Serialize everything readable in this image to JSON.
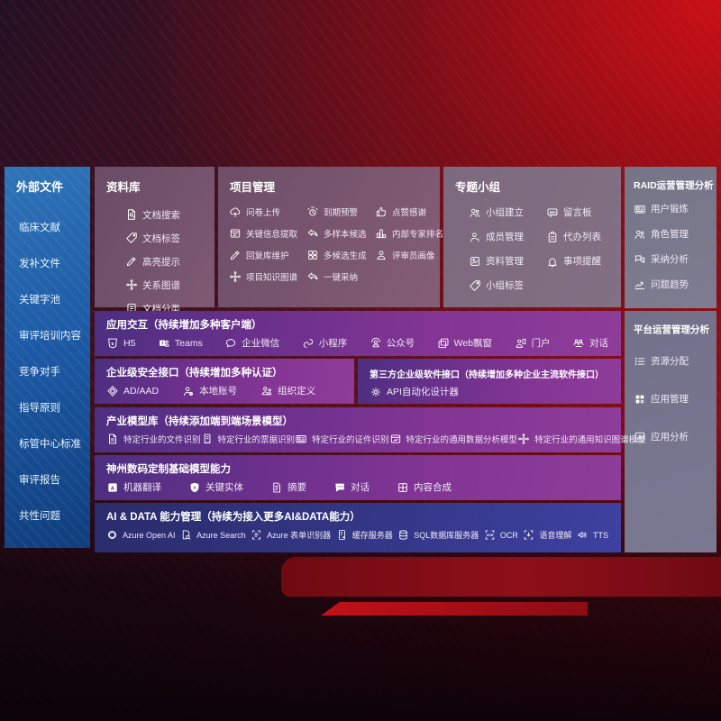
{
  "colors": {
    "background_red": "#9b0d14",
    "bright_red": "#c21019",
    "sidebar_blue": "#1d5ba6",
    "panel_mauve": "#74536c",
    "panel_slate": "#7a7890",
    "row_purple": "#833594",
    "row_navy": "#343787"
  },
  "sidebar": {
    "title": "外部文件",
    "items": [
      "临床文献",
      "发补文件",
      "关键字池",
      "审评培训内容",
      "竞争对手",
      "指导原则",
      "标管中心标准",
      "审评报告",
      "共性问题"
    ]
  },
  "panels": {
    "library": {
      "title": "资料库",
      "items": [
        {
          "label": "文档搜索",
          "icon": "doc-search"
        },
        {
          "label": "文档标签",
          "icon": "tag"
        },
        {
          "label": "高亮提示",
          "icon": "highlight-pen"
        },
        {
          "label": "关系图谱",
          "icon": "graph"
        },
        {
          "label": "文档分类",
          "icon": "doc-class"
        }
      ]
    },
    "project": {
      "title": "项目管理",
      "items": [
        {
          "label": "问卷上传",
          "icon": "cloud-upload"
        },
        {
          "label": "到期预警",
          "icon": "alarm"
        },
        {
          "label": "点赞感谢",
          "icon": "thumbs-up"
        },
        {
          "label": "关键信息提取",
          "icon": "doc-extract"
        },
        {
          "label": "多样本候选",
          "icon": "reply-arrow"
        },
        {
          "label": "内部专家排名",
          "icon": "rank"
        },
        {
          "label": "回复库维护",
          "icon": "pen"
        },
        {
          "label": "多候选生成",
          "icon": "grid-gen"
        },
        {
          "label": "评审员画像",
          "icon": "person"
        },
        {
          "label": "项目知识图谱",
          "icon": "kg-graph"
        },
        {
          "label": "一键采纳",
          "icon": "adopt-arrow"
        }
      ]
    },
    "group": {
      "title": "专题小组",
      "items": [
        {
          "label": "小组建立",
          "icon": "people"
        },
        {
          "label": "留言板",
          "icon": "bbs"
        },
        {
          "label": "成员管理",
          "icon": "member"
        },
        {
          "label": "代办列表",
          "icon": "clipboard"
        },
        {
          "label": "资料管理",
          "icon": "album"
        },
        {
          "label": "事项提醒",
          "icon": "bell"
        },
        {
          "label": "小组标签",
          "icon": "tag"
        }
      ]
    },
    "raid": {
      "title": "RAID运营管理分析",
      "items": [
        {
          "label": "用户锻炼",
          "icon": "id-card"
        },
        {
          "label": "角色管理",
          "icon": "roles"
        },
        {
          "label": "采纳分析",
          "icon": "qa-chat"
        },
        {
          "label": "问题趋势",
          "icon": "trend"
        }
      ]
    },
    "platform": {
      "title": "平台运营管理分析",
      "items": [
        {
          "label": "资源分配",
          "icon": "list-alloc"
        },
        {
          "label": "应用管理",
          "icon": "apps"
        },
        {
          "label": "应用分析",
          "icon": "app-chart"
        }
      ]
    }
  },
  "rows": {
    "interaction": {
      "title": "应用交互（持续增加多种客户端）",
      "items": [
        {
          "label": "H5",
          "icon": "h5"
        },
        {
          "label": "Teams",
          "icon": "teams"
        },
        {
          "label": "企业微信",
          "icon": "wecom"
        },
        {
          "label": "小程序",
          "icon": "minip"
        },
        {
          "label": "公众号",
          "icon": "gzh"
        },
        {
          "label": "Web飘窗",
          "icon": "web-window"
        },
        {
          "label": "门户",
          "icon": "portal"
        },
        {
          "label": "对话",
          "icon": "duihua"
        }
      ]
    },
    "security": {
      "title": "企业级安全接口（持续增加多种认证）",
      "items": [
        {
          "label": "AD/AAD",
          "icon": "ad-diamond"
        },
        {
          "label": "本地账号",
          "icon": "local-acct"
        },
        {
          "label": "组织定义",
          "icon": "org"
        }
      ]
    },
    "thirdparty": {
      "title": "第三方企业级软件接口（持续增加多种企业主流软件接口）",
      "items": [
        {
          "label": "API自动化设计器",
          "icon": "api-gear"
        }
      ]
    },
    "industry": {
      "title": "产业模型库（持续添加端到端场景模型）",
      "items": [
        {
          "label": "特定行业的文件识别",
          "icon": "doc-file"
        },
        {
          "label": "特定行业的票据识别",
          "icon": "receipt"
        },
        {
          "label": "特定行业的证件识别",
          "icon": "cert-card"
        },
        {
          "label": "特定行业的通用数据分析模型",
          "icon": "data-model"
        },
        {
          "label": "特定行业的通用知识图谱模型",
          "icon": "kg-graph"
        }
      ]
    },
    "digital": {
      "title": "神州数码定制基础模型能力",
      "items": [
        {
          "label": "机器翻译",
          "icon": "translate"
        },
        {
          "label": "关键实体",
          "icon": "entity-shield"
        },
        {
          "label": "摘要",
          "icon": "summary"
        },
        {
          "label": "对话",
          "icon": "chat-dots"
        },
        {
          "label": "内容合成",
          "icon": "compose"
        }
      ]
    },
    "aidata": {
      "title": "AI & DATA 能力管理（持续为接入更多AI&DATA能力）",
      "items": [
        {
          "label": "Azure Open AI",
          "icon": "openai"
        },
        {
          "label": "Azure Search",
          "icon": "az-search"
        },
        {
          "label": "Azure 表单识别器",
          "icon": "form-rec"
        },
        {
          "label": "缓存服务器",
          "icon": "cache-server"
        },
        {
          "label": "SQL数据库服务器",
          "icon": "sql-db"
        },
        {
          "label": "OCR",
          "icon": "ocr"
        },
        {
          "label": "语音理解",
          "icon": "speech"
        },
        {
          "label": "TTS",
          "icon": "tts"
        }
      ]
    }
  }
}
